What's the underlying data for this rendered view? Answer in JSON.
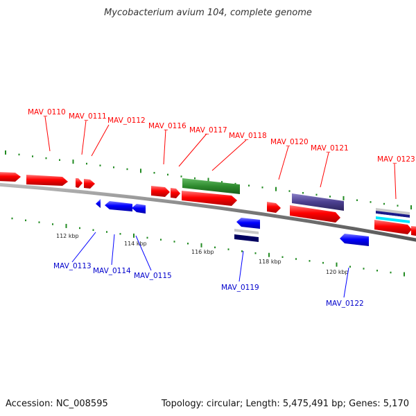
{
  "title": "Mycobacterium avium 104, complete genome",
  "footer": {
    "accession": "Accession: NC_008595",
    "summary": "Topology: circular; Length: 5,475,491 bp; Genes: 5,170"
  },
  "colors": {
    "forward_gene": "#ff0000",
    "reverse_gene": "#0000ff",
    "rrna": "#2e8b2e",
    "purple_feature": "#4b3f8f",
    "backbone": "#808080",
    "tick": "#228b22"
  },
  "kbp_labels": [
    "112 kbp",
    "114 kbp",
    "116 kbp",
    "118 kbp",
    "120 kbp"
  ],
  "gene_labels": {
    "forward": [
      "MAV_0110",
      "MAV_0111",
      "MAV_0112",
      "MAV_0116",
      "MAV_0117",
      "MAV_0118",
      "MAV_0120",
      "MAV_0121",
      "MAV_0123"
    ],
    "reverse": [
      "MAV_0113",
      "MAV_0114",
      "MAV_0115",
      "MAV_0119",
      "MAV_0122"
    ]
  }
}
